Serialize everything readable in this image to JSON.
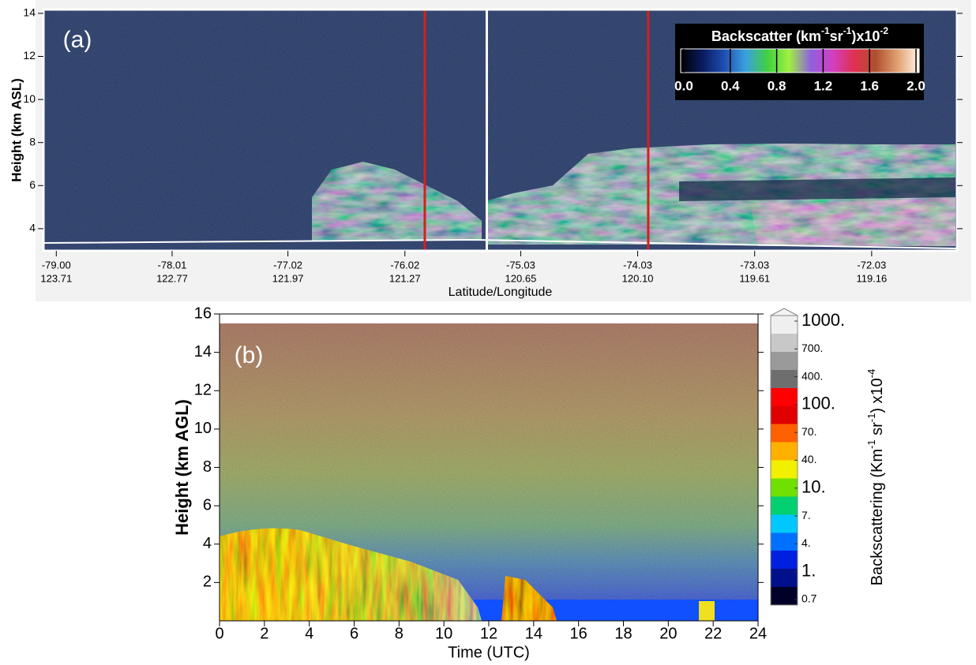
{
  "chart_data": [
    {
      "type": "curtain",
      "panel_label": "(a)",
      "ylabel": "Height (km ASL)",
      "xlabel": "Latitude/Longitude",
      "xlim": [
        -79.11,
        -71.3
      ],
      "ylim": [
        2.97,
        14.18
      ],
      "yticks": [
        4,
        6,
        8,
        10,
        12,
        14
      ],
      "xticks": [
        {
          "value": -79,
          "label": "-79.00"
        },
        {
          "value": -78.01,
          "label": "-78.01"
        },
        {
          "value": -77.02,
          "label": "-77.02"
        },
        {
          "value": -76.02,
          "label": "-76.02"
        },
        {
          "value": -75.03,
          "label": "-75.03"
        },
        {
          "value": -74.03,
          "label": "-74.03"
        },
        {
          "value": -73.03,
          "label": "-73.03"
        },
        {
          "value": -72.03,
          "label": "-72.03"
        }
      ],
      "xticks_lon": [
        {
          "value": 123.71,
          "label": "123.71"
        },
        {
          "value": 122.77,
          "label": "122.77"
        },
        {
          "value": 121.97,
          "label": "121.97"
        },
        {
          "value": 121.27,
          "label": "121.27"
        },
        {
          "value": 120.65,
          "label": "120.65"
        },
        {
          "value": 120.1,
          "label": "120.10"
        },
        {
          "value": 119.61,
          "label": "119.61"
        },
        {
          "value": 119.16,
          "label": "119.16"
        }
      ],
      "vlines": [
        {
          "x": -75.85,
          "color": "#d81e1e"
        },
        {
          "x": -75.32,
          "color": "#ffffff"
        },
        {
          "x": -73.94,
          "color": "#d81e1e"
        }
      ],
      "colorbar": {
        "title": [
          "Backscatter (km",
          "-1",
          "sr",
          "-1",
          ")x10",
          "-2"
        ],
        "lim": [
          0,
          2
        ],
        "ticks": [
          {
            "value": 0,
            "label": "0.0"
          },
          0.4,
          0.8,
          1.2,
          1.6,
          {
            "value": 2,
            "label": "2.0"
          }
        ],
        "colors": [
          "#000000",
          "#0a1a60",
          "#1e4fb0",
          "#3aa0e0",
          "#40d040",
          "#a0f040",
          "#9060e0",
          "#d040c0",
          "#e03050",
          "#b05030",
          "#e0a070",
          "#fff6e8"
        ],
        "discrete": false
      }
    },
    {
      "type": "curtain",
      "panel_label": "(b)",
      "ylabel": "Height (km AGL)",
      "xlabel": "Time (UTC)",
      "xlim": [
        0,
        24
      ],
      "ylim": [
        0,
        16
      ],
      "yticks": [
        2,
        4,
        6,
        8,
        10,
        12,
        14,
        16
      ],
      "xticks": [
        0,
        2,
        4,
        6,
        8,
        10,
        12,
        14,
        16,
        18,
        20,
        22,
        24
      ],
      "colorbar": {
        "title": [
          "Backscattering (Km",
          "-1",
          " sr",
          "-1",
          ") x10",
          "-4"
        ],
        "scale": "levels",
        "ticks": [
          {
            "value": 0.7,
            "label": "0.7"
          },
          {
            "value": 1,
            "label": "1."
          },
          {
            "value": 4,
            "label": "4."
          },
          {
            "value": 7,
            "label": "7."
          },
          {
            "value": 10,
            "label": "10."
          },
          {
            "value": 40,
            "label": "40."
          },
          {
            "value": 70,
            "label": "70."
          },
          {
            "value": 100,
            "label": "100."
          },
          {
            "value": 400,
            "label": "400."
          },
          {
            "value": 700,
            "label": "700."
          },
          {
            "value": 1000,
            "label": "1000."
          }
        ],
        "colors": [
          "#000028",
          "#00108a",
          "#0020e0",
          "#0070ff",
          "#00c8ff",
          "#00d070",
          "#70e000",
          "#f0f000",
          "#ffb000",
          "#ff6000",
          "#e00000",
          "#ff0000",
          "#6e6e6e",
          "#9a9a9a",
          "#c8c8c8",
          "#efefef"
        ],
        "discrete": true
      }
    }
  ]
}
